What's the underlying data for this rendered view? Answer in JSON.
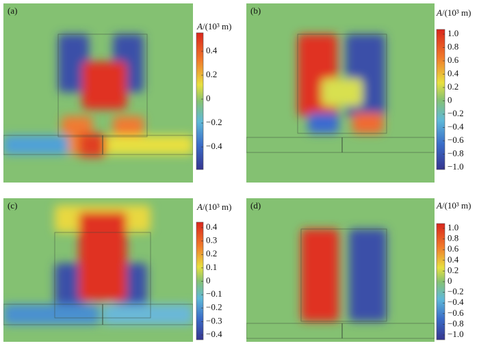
{
  "panels": [
    {
      "label": "(a)",
      "unit_symbol": "A",
      "unit": "/(10³ m)",
      "ticks": [
        "0.4",
        "0.2",
        "0",
        "−0.2",
        "−0.4"
      ]
    },
    {
      "label": "(b)",
      "unit_symbol": "A",
      "unit": "/(10³ m)",
      "ticks": [
        "1.0",
        "0.8",
        "0.6",
        "0.4",
        "0.2",
        "0",
        "−0.2",
        "−0.4",
        "−0.6",
        "−0.8",
        "−1.0"
      ]
    },
    {
      "label": "(c)",
      "unit_symbol": "A",
      "unit": "/(10³ m)",
      "ticks": [
        "0.4",
        "0.3",
        "0.2",
        "0.1",
        "0",
        "−0.1",
        "−0.2",
        "−0.3",
        "−0.4"
      ]
    },
    {
      "label": "(d)",
      "unit_symbol": "A",
      "unit": "/(10³ m)",
      "ticks": [
        "1.0",
        "0.8",
        "0.6",
        "0.4",
        "0.2",
        "0",
        "−0.2",
        "−0.4",
        "−0.6",
        "−0.8",
        "−1.0"
      ]
    }
  ]
}
